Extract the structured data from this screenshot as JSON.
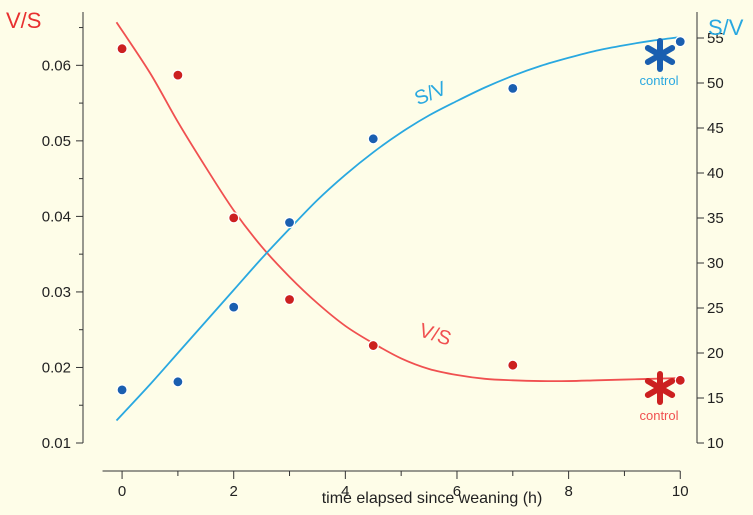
{
  "chart_data": {
    "type": "scatter",
    "title": "",
    "xlabel": "time elapsed since weaning (h)",
    "y_left_label": "V/S",
    "y_right_label": "S/V",
    "xlim": [
      -0.7,
      10.3
    ],
    "ylim_left": [
      0.01,
      0.066
    ],
    "ylim_right": [
      10,
      57
    ],
    "x_ticks": [
      0,
      2,
      4,
      6,
      8,
      10
    ],
    "x_tick_labels": [
      "0",
      "2",
      "4",
      "6",
      "8",
      "10"
    ],
    "y_left_ticks": [
      0.01,
      0.02,
      0.03,
      0.04,
      0.05,
      0.06
    ],
    "y_left_tick_labels": [
      "0.01",
      "0.02",
      "0.03",
      "0.04",
      "0.05",
      "0.06"
    ],
    "y_right_ticks": [
      10,
      15,
      20,
      25,
      30,
      35,
      40,
      45,
      50,
      55
    ],
    "y_right_tick_labels": [
      "10",
      "15",
      "20",
      "25",
      "30",
      "35",
      "40",
      "45",
      "50",
      "55"
    ],
    "grid": false,
    "series": [
      {
        "name": "V/S",
        "axis": "left",
        "color": "#f05050",
        "marker_color": "#cc2020",
        "points": [
          {
            "x": 0,
            "y": 0.0622
          },
          {
            "x": 1,
            "y": 0.0587
          },
          {
            "x": 2,
            "y": 0.0398
          },
          {
            "x": 3,
            "y": 0.029
          },
          {
            "x": 4.5,
            "y": 0.0229
          },
          {
            "x": 7,
            "y": 0.0203
          },
          {
            "x": 10,
            "y": 0.0183
          }
        ],
        "fit": [
          {
            "x": -0.1,
            "y": 0.0657
          },
          {
            "x": 0.5,
            "y": 0.059
          },
          {
            "x": 1,
            "y": 0.0525
          },
          {
            "x": 1.5,
            "y": 0.0465
          },
          {
            "x": 2,
            "y": 0.0408
          },
          {
            "x": 2.5,
            "y": 0.036
          },
          {
            "x": 3,
            "y": 0.032
          },
          {
            "x": 3.5,
            "y": 0.0285
          },
          {
            "x": 4,
            "y": 0.0255
          },
          {
            "x": 4.5,
            "y": 0.0232
          },
          {
            "x": 5,
            "y": 0.0212
          },
          {
            "x": 5.5,
            "y": 0.0198
          },
          {
            "x": 6,
            "y": 0.019
          },
          {
            "x": 6.5,
            "y": 0.0185
          },
          {
            "x": 7,
            "y": 0.0183
          },
          {
            "x": 7.5,
            "y": 0.0182
          },
          {
            "x": 8,
            "y": 0.0182
          },
          {
            "x": 8.5,
            "y": 0.0183
          },
          {
            "x": 9,
            "y": 0.0184
          },
          {
            "x": 9.5,
            "y": 0.0185
          },
          {
            "x": 10,
            "y": 0.0186
          }
        ],
        "curve_label": "V/S",
        "control_value": 16.5
      },
      {
        "name": "S/V",
        "axis": "right",
        "color": "#29a8e0",
        "marker_color": "#1a5fb0",
        "points": [
          {
            "x": 0,
            "y": 15.9
          },
          {
            "x": 1,
            "y": 16.8
          },
          {
            "x": 2,
            "y": 25.1
          },
          {
            "x": 3,
            "y": 34.5
          },
          {
            "x": 4.5,
            "y": 43.8
          },
          {
            "x": 7,
            "y": 49.4
          },
          {
            "x": 10,
            "y": 54.6
          }
        ],
        "fit": [
          {
            "x": -0.1,
            "y": 12.5
          },
          {
            "x": 0.5,
            "y": 16.5
          },
          {
            "x": 1,
            "y": 20.0
          },
          {
            "x": 1.5,
            "y": 23.5
          },
          {
            "x": 2,
            "y": 27.0
          },
          {
            "x": 2.5,
            "y": 30.5
          },
          {
            "x": 3,
            "y": 33.8
          },
          {
            "x": 3.5,
            "y": 37.0
          },
          {
            "x": 4,
            "y": 39.8
          },
          {
            "x": 4.5,
            "y": 42.3
          },
          {
            "x": 5,
            "y": 44.5
          },
          {
            "x": 5.5,
            "y": 46.4
          },
          {
            "x": 6,
            "y": 48.0
          },
          {
            "x": 6.5,
            "y": 49.5
          },
          {
            "x": 7,
            "y": 50.8
          },
          {
            "x": 7.5,
            "y": 51.9
          },
          {
            "x": 8,
            "y": 52.8
          },
          {
            "x": 8.5,
            "y": 53.6
          },
          {
            "x": 9,
            "y": 54.2
          },
          {
            "x": 9.5,
            "y": 54.7
          },
          {
            "x": 10,
            "y": 55.1
          }
        ],
        "curve_label": "S/V",
        "control_value": 56.5
      }
    ],
    "control_label": "control"
  }
}
